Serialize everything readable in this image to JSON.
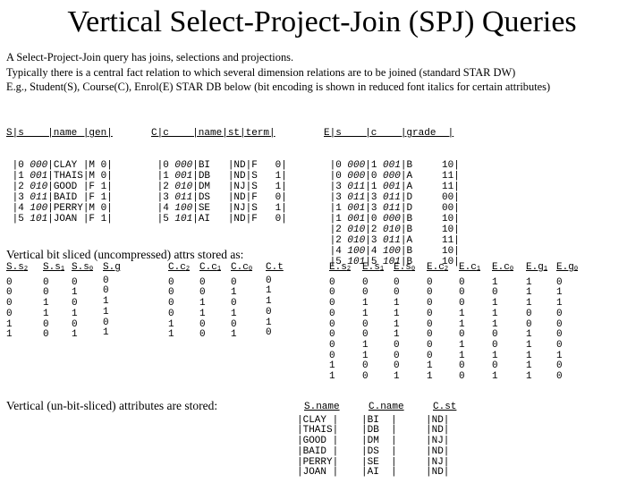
{
  "title": "Vertical Select-Project-Join (SPJ) Queries",
  "intro": [
    "A Select-Project-Join query has joins, selections and projections.",
    "Typically there is a central fact relation to which several dimension relations are to be joined (standard STAR DW)",
    "E.g.,  Student(S), Course(C), Enrol(E) STAR DB below (bit encoding is shown in reduced font italics for certain attributes)"
  ],
  "student_table": {
    "header": "S|s    |name |gen|",
    "rows": [
      {
        "a": " |0 ",
        "bits": "000",
        "b": "|CLAY |M 0|"
      },
      {
        "a": " |1 ",
        "bits": "001",
        "b": "|THAIS|M 0|"
      },
      {
        "a": " |2 ",
        "bits": "010",
        "b": "|GOOD |F 1|"
      },
      {
        "a": " |3 ",
        "bits": "011",
        "b": "|BAID |F 1|"
      },
      {
        "a": " |4 ",
        "bits": "100",
        "b": "|PERRY|M 0|"
      },
      {
        "a": " |5 ",
        "bits": "101",
        "b": "|JOAN |F 1|"
      }
    ]
  },
  "course_table": {
    "header": "C|c    |name|st|term|",
    "rows": [
      {
        "a": " |0 ",
        "bits": "000",
        "b": "|BI   |ND|F   0|"
      },
      {
        "a": " |1 ",
        "bits": "001",
        "b": "|DB   |ND|S   1|"
      },
      {
        "a": " |2 ",
        "bits": "010",
        "b": "|DM   |NJ|S   1|"
      },
      {
        "a": " |3 ",
        "bits": "011",
        "b": "|DS   |ND|F   0|"
      },
      {
        "a": " |4 ",
        "bits": "100",
        "b": "|SE   |NJ|S   1|"
      },
      {
        "a": " |5 ",
        "bits": "101",
        "b": "|AI   |ND|F   0|"
      }
    ]
  },
  "enrol_table": {
    "header": "E|s    |c    |grade  |",
    "rows": [
      {
        "a": " |0 ",
        "sbits": "000",
        "m": "|1 ",
        "cbits": "001",
        "b": "|B     10|"
      },
      {
        "a": " |0 ",
        "sbits": "000",
        "m": "|0 ",
        "cbits": "000",
        "b": "|A     11|"
      },
      {
        "a": " |3 ",
        "sbits": "011",
        "m": "|1 ",
        "cbits": "001",
        "b": "|A     11|"
      },
      {
        "a": " |3 ",
        "sbits": "011",
        "m": "|3 ",
        "cbits": "011",
        "b": "|D     00|"
      },
      {
        "a": " |1 ",
        "sbits": "001",
        "m": "|3 ",
        "cbits": "011",
        "b": "|D     00|"
      },
      {
        "a": " |1 ",
        "sbits": "001",
        "m": "|0 ",
        "cbits": "000",
        "b": "|B     10|"
      },
      {
        "a": " |2 ",
        "sbits": "010",
        "m": "|2 ",
        "cbits": "010",
        "b": "|B     10|"
      },
      {
        "a": " |2 ",
        "sbits": "010",
        "m": "|3 ",
        "cbits": "011",
        "b": "|A     11|"
      },
      {
        "a": " |4 ",
        "sbits": "100",
        "m": "|4 ",
        "cbits": "100",
        "b": "|B     10|"
      },
      {
        "a": " |5 ",
        "sbits": "101",
        "m": "|5 ",
        "cbits": "101",
        "b": "|B     10|"
      }
    ]
  },
  "bit_sliced_heading": "Vertical bit sliced (uncompressed) attrs stored as:",
  "bit_sliced_columns": [
    {
      "base": "S.s",
      "sub": "2",
      "values": "0\n0\n0\n0\n1\n1"
    },
    {
      "base": "S.s",
      "sub": "1",
      "values": "0\n0\n1\n1\n0\n0"
    },
    {
      "base": "S.s",
      "sub": "0",
      "values": "0\n1\n0\n1\n0\n1"
    },
    {
      "base": "S.g",
      "sub": "",
      "values": "0\n0\n1\n1\n0\n1"
    },
    {
      "base": "C.c",
      "sub": "2",
      "values": "0\n0\n0\n0\n1\n1"
    },
    {
      "base": "C.c",
      "sub": "1",
      "values": "0\n0\n1\n1\n0\n0"
    },
    {
      "base": "C.c",
      "sub": "0",
      "values": "0\n1\n0\n1\n0\n1"
    },
    {
      "base": "C.t",
      "sub": "",
      "values": "0\n1\n1\n0\n1\n0"
    },
    {
      "base": "E.s",
      "sub": "2",
      "values": "0\n0\n0\n0\n0\n0\n0\n0\n1\n1"
    },
    {
      "base": "E.s",
      "sub": "1",
      "values": "0\n0\n1\n1\n0\n0\n1\n1\n0\n0"
    },
    {
      "base": "E.s",
      "sub": "0",
      "values": "0\n0\n1\n1\n1\n1\n0\n0\n0\n1"
    },
    {
      "base": "E.c",
      "sub": "2",
      "values": "0\n0\n0\n0\n0\n0\n0\n0\n1\n1"
    },
    {
      "base": "E.c",
      "sub": "1",
      "values": "0\n0\n0\n1\n1\n0\n1\n1\n0\n0"
    },
    {
      "base": "E.c",
      "sub": "0",
      "values": "1\n0\n1\n1\n1\n0\n0\n1\n0\n1"
    },
    {
      "base": "E.g",
      "sub": "1",
      "values": "1\n1\n1\n0\n0\n1\n1\n1\n1\n1"
    },
    {
      "base": "E.g",
      "sub": "0",
      "values": "0\n1\n1\n0\n0\n0\n0\n1\n0\n0"
    }
  ],
  "unsliced_heading": "Vertical (un-bit-sliced) attributes are stored:",
  "unsliced_columns": [
    {
      "header": "S.name",
      "values": "|CLAY |\n|THAIS|\n|GOOD |\n|BAID |\n|PERRY|\n|JOAN |"
    },
    {
      "header": "C.name",
      "values": "|BI  |\n|DB  |\n|DM  |\n|DS  |\n|SE  |\n|AI  |"
    },
    {
      "header": "C.st",
      "values": "|ND|\n|ND|\n|NJ|\n|ND|\n|NJ|\n|ND|"
    }
  ]
}
